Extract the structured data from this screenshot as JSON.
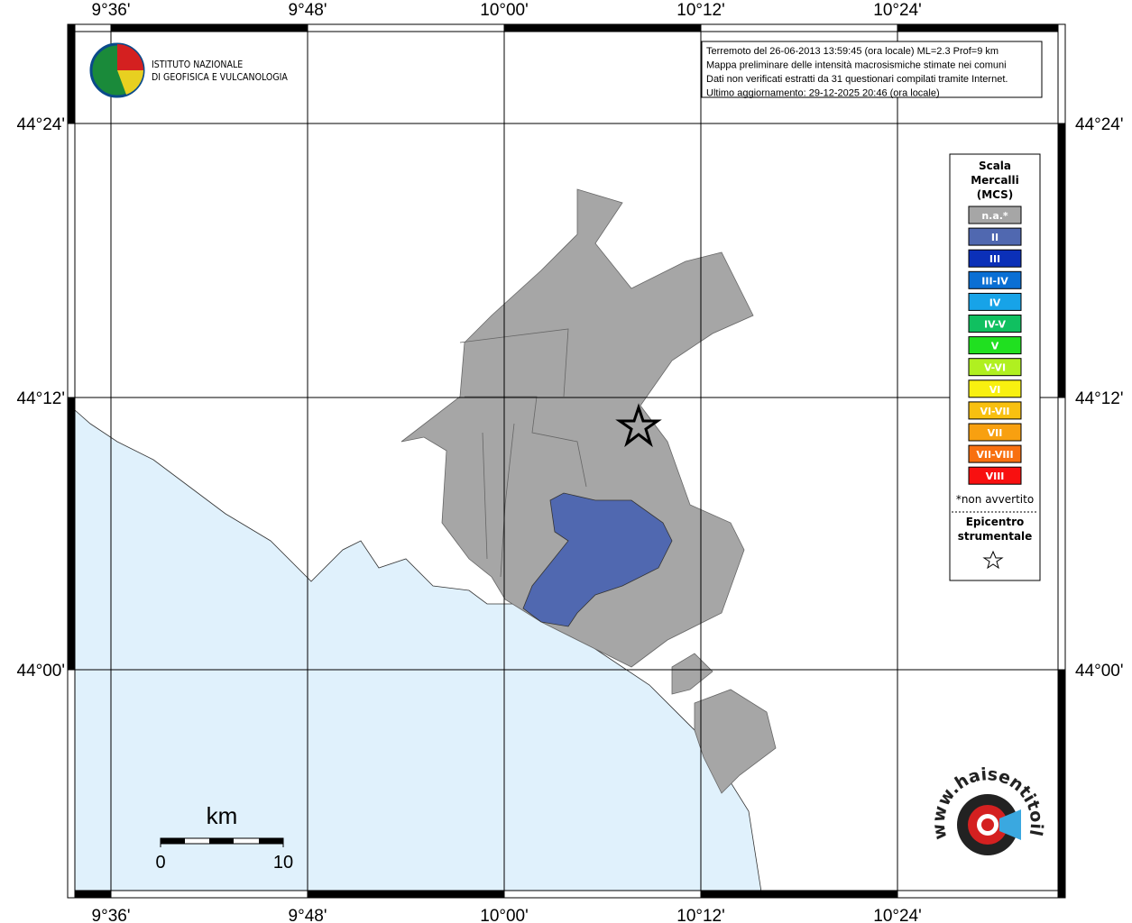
{
  "header": {
    "info": [
      "Terremoto del 26-06-2013 13:59:45 (ora locale) ML=2.3 Prof=9 km",
      "Mappa preliminare delle intensità macrosismiche stimate nei comuni",
      "Dati non verificati estratti da 31 questionari compilati tramite Internet.",
      "Ultimo aggiornamento: 29-12-2025 20:46 (ora locale)"
    ],
    "logo": [
      "ISTITUTO NAZIONALE",
      "DI GEOFISICA E VULCANOLOGIA"
    ]
  },
  "axes": {
    "lon": [
      "9°36'",
      "9°48'",
      "10°00'",
      "10°12'",
      "10°24'"
    ],
    "lat": [
      "44°24'",
      "44°12'",
      "44°00'"
    ]
  },
  "legend": {
    "title": [
      "Scala",
      "Mercalli",
      "(MCS)"
    ],
    "items": [
      {
        "label": "n.a.*",
        "color": "#a6a6a6"
      },
      {
        "label": "II",
        "color": "#5068b0"
      },
      {
        "label": "III",
        "color": "#0b30b8"
      },
      {
        "label": "III-IV",
        "color": "#0a6fd4"
      },
      {
        "label": "IV",
        "color": "#17a3e8"
      },
      {
        "label": "IV-V",
        "color": "#10c060"
      },
      {
        "label": "V",
        "color": "#20e020"
      },
      {
        "label": "V-VI",
        "color": "#b0f020"
      },
      {
        "label": "VI",
        "color": "#f8f010"
      },
      {
        "label": "VI-VII",
        "color": "#f8c010"
      },
      {
        "label": "VII",
        "color": "#f8a010"
      },
      {
        "label": "VII-VIII",
        "color": "#f87010"
      },
      {
        "label": "VIII",
        "color": "#f81010"
      }
    ],
    "note": "*non avvertito",
    "epicenter": [
      "Epicentro",
      "strumentale"
    ]
  },
  "scale": {
    "unit": "km",
    "ticks": [
      "0",
      "10"
    ]
  },
  "site": "www.haisentitoilterremoto.it"
}
